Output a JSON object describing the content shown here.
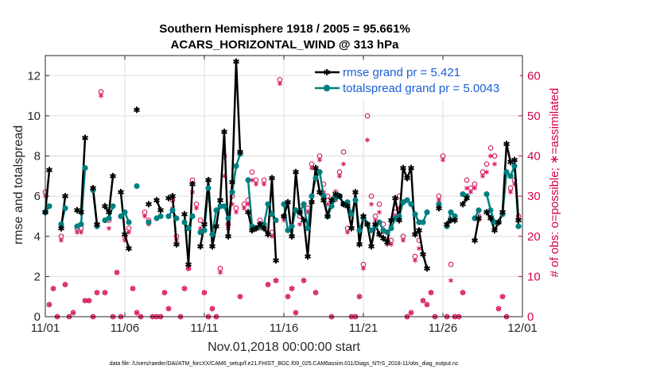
{
  "colors": {
    "rmse": "#000000",
    "spread": "#008080",
    "obs": "#d4004f",
    "legend_text": "#1a5fd6"
  },
  "chart_data": {
    "type": "line",
    "title_line1": "Southern Hemisphere 1918 / 2005 = 95.661%",
    "title_line2": "ACARS_HORIZONTAL_WIND @ 313 hPa",
    "xlabel": "Nov.01,2018 00:00:00 start",
    "ylabel_left": "rmse and totalspread",
    "ylabel_right": "# of obs: o=possible; ∗=assimilated",
    "footnote": "data file: /Users/raeder/DAI/ATM_forcXX/CAM6_setup/f.e21.FHIST_BGC.f09_025.CAM6assim.011/Diags_NTrS_2018-11/obs_diag_output.nc",
    "xlim": [
      0,
      30
    ],
    "ylim_left": [
      0,
      13
    ],
    "ylim_right": [
      0,
      65
    ],
    "x_ticks": [
      0,
      5,
      10,
      15,
      20,
      25,
      30
    ],
    "x_tick_labels": [
      "11/01",
      "11/06",
      "11/11",
      "11/16",
      "11/21",
      "11/26",
      "12/01"
    ],
    "y_left_ticks": [
      0,
      2,
      4,
      6,
      8,
      10,
      12
    ],
    "y_right_ticks": [
      0,
      10,
      20,
      30,
      40,
      50,
      60
    ],
    "legend": {
      "rmse": "rmse grand pr = 5.421",
      "spread": "totalspread grand pr = 5.0043"
    },
    "series": [
      {
        "name": "rmse",
        "x": [
          0.0,
          0.25,
          0.5,
          0.75,
          1.0,
          1.25,
          1.5,
          1.75,
          2.0,
          2.25,
          2.5,
          2.75,
          3.0,
          3.25,
          3.5,
          3.75,
          4.0,
          4.25,
          4.5,
          4.75,
          5.0,
          5.25,
          5.5,
          5.75,
          6.0,
          6.25,
          6.5,
          6.75,
          7.0,
          7.25,
          7.5,
          7.75,
          8.0,
          8.25,
          8.5,
          8.75,
          9.0,
          9.25,
          9.5,
          9.75,
          10.0,
          10.25,
          10.5,
          10.75,
          11.0,
          11.25,
          11.5,
          11.75,
          12.0,
          12.25,
          12.5,
          12.75,
          13.0,
          13.25,
          13.5,
          13.75,
          14.0,
          14.25,
          14.5,
          14.75,
          15.0,
          15.25,
          15.5,
          15.75,
          16.0,
          16.25,
          16.5,
          16.75,
          17.0,
          17.25,
          17.5,
          17.75,
          18.0,
          18.25,
          18.5,
          18.75,
          19.0,
          19.25,
          19.5,
          19.75,
          20.0,
          20.25,
          20.5,
          20.75,
          21.0,
          21.25,
          21.5,
          21.75,
          22.0,
          22.25,
          22.5,
          22.75,
          23.0,
          23.25,
          23.5,
          23.75,
          24.0,
          24.25,
          24.5,
          24.75,
          25.0,
          25.25,
          25.5,
          25.75,
          26.0,
          26.25,
          26.5,
          26.75,
          27.0,
          27.25,
          27.5,
          27.75,
          28.0,
          28.25,
          28.5,
          28.75,
          29.0,
          29.25,
          29.5,
          29.75
        ],
        "values": [
          5.2,
          7.3,
          null,
          null,
          4.4,
          6.0,
          null,
          null,
          5.3,
          5.2,
          8.9,
          null,
          6.4,
          4.6,
          null,
          5.5,
          5.2,
          7.0,
          null,
          6.2,
          4.1,
          3.4,
          null,
          10.3,
          null,
          null,
          5.6,
          null,
          5.8,
          5.3,
          null,
          5.9,
          6.0,
          3.6,
          null,
          5.1,
          2.6,
          6.6,
          null,
          3.5,
          4.6,
          6.8,
          3.5,
          4.5,
          5.8,
          9.2,
          4.0,
          6.7,
          12.7,
          8.2,
          null,
          5.2,
          4.3,
          4.4,
          4.6,
          4.4,
          4.1,
          6.9,
          2.8,
          null,
          5.0,
          5.7,
          4.0,
          7.2,
          5.2,
          4.8,
          3.0,
          5.7,
          7.4,
          6.2,
          5.8,
          5.0,
          5.8,
          6.1,
          6.0,
          5.6,
          5.5,
          4.4,
          6.2,
          3.6,
          5.0,
          4.6,
          3.5,
          4.6,
          4.1,
          3.9,
          3.7,
          4.8,
          5.9,
          4.8,
          7.4,
          6.9,
          7.4,
          4.1,
          4.3,
          3.1,
          2.4,
          null,
          null,
          5.4,
          null,
          4.6,
          4.8,
          4.8,
          null,
          5.6,
          5.9,
          null,
          3.8,
          4.9,
          null,
          5.2,
          4.9,
          4.3,
          4.7,
          5.2,
          8.6,
          7.7,
          7.8,
          4.8
        ]
      },
      {
        "name": "totalspread",
        "x": [
          0.0,
          0.25,
          0.5,
          0.75,
          1.0,
          1.25,
          1.5,
          1.75,
          2.0,
          2.25,
          2.5,
          2.75,
          3.0,
          3.25,
          3.5,
          3.75,
          4.0,
          4.25,
          4.5,
          4.75,
          5.0,
          5.25,
          5.5,
          5.75,
          6.0,
          6.25,
          6.5,
          6.75,
          7.0,
          7.25,
          7.5,
          7.75,
          8.0,
          8.25,
          8.5,
          8.75,
          9.0,
          9.25,
          9.5,
          9.75,
          10.0,
          10.25,
          10.5,
          10.75,
          11.0,
          11.25,
          11.5,
          11.75,
          12.0,
          12.25,
          12.5,
          12.75,
          13.0,
          13.25,
          13.5,
          13.75,
          14.0,
          14.25,
          14.5,
          14.75,
          15.0,
          15.25,
          15.5,
          15.75,
          16.0,
          16.25,
          16.5,
          16.75,
          17.0,
          17.25,
          17.5,
          17.75,
          18.0,
          18.25,
          18.5,
          18.75,
          19.0,
          19.25,
          19.5,
          19.75,
          20.0,
          20.25,
          20.5,
          20.75,
          21.0,
          21.25,
          21.5,
          21.75,
          22.0,
          22.25,
          22.5,
          22.75,
          23.0,
          23.25,
          23.5,
          23.75,
          24.0,
          24.25,
          24.5,
          24.75,
          25.0,
          25.25,
          25.5,
          25.75,
          26.0,
          26.25,
          26.5,
          26.75,
          27.0,
          27.25,
          27.5,
          27.75,
          28.0,
          28.25,
          28.5,
          28.75,
          29.0,
          29.25,
          29.5,
          29.75
        ],
        "values": [
          5.2,
          5.5,
          null,
          null,
          4.6,
          5.4,
          null,
          null,
          4.5,
          4.6,
          7.4,
          null,
          6.3,
          4.5,
          null,
          4.8,
          4.9,
          5.5,
          null,
          5.0,
          5.2,
          4.7,
          null,
          6.5,
          null,
          null,
          4.7,
          null,
          4.9,
          5.0,
          null,
          5.0,
          5.3,
          4.9,
          null,
          4.7,
          4.4,
          5.0,
          null,
          4.2,
          4.3,
          6.4,
          4.1,
          5.3,
          5.5,
          5.5,
          4.9,
          6.2,
          7.5,
          8.1,
          null,
          6.8,
          4.5,
          4.4,
          4.5,
          4.6,
          5.6,
          5.1,
          4.8,
          null,
          5.6,
          4.3,
          4.5,
          5.3,
          5.2,
          5.6,
          4.4,
          6.0,
          6.9,
          7.2,
          6.0,
          5.0,
          5.5,
          5.9,
          6.0,
          5.6,
          5.7,
          5.1,
          5.8,
          4.3,
          4.9,
          4.6,
          4.3,
          4.5,
          4.7,
          4.3,
          4.2,
          4.4,
          4.9,
          5.0,
          5.7,
          5.8,
          5.6,
          5.1,
          4.7,
          4.7,
          5.2,
          null,
          null,
          5.6,
          null,
          4.5,
          5.2,
          5.0,
          null,
          6.1,
          6.0,
          null,
          4.9,
          5.3,
          null,
          6.1,
          5.3,
          4.7,
          4.7,
          5.1,
          7.2,
          7.0,
          7.5,
          4.5
        ]
      },
      {
        "name": "obs_possible",
        "x": [
          0.0,
          0.25,
          0.5,
          0.75,
          1.0,
          1.25,
          1.5,
          1.75,
          2.0,
          2.25,
          2.5,
          2.75,
          3.0,
          3.25,
          3.5,
          3.75,
          4.0,
          4.25,
          4.5,
          4.75,
          5.0,
          5.25,
          5.5,
          5.75,
          6.0,
          6.25,
          6.5,
          6.75,
          7.0,
          7.25,
          7.5,
          7.75,
          8.0,
          8.25,
          8.5,
          8.75,
          9.0,
          9.25,
          9.5,
          9.75,
          10.0,
          10.25,
          10.5,
          10.75,
          11.0,
          11.25,
          11.5,
          11.75,
          12.0,
          12.25,
          12.5,
          12.75,
          13.0,
          13.25,
          13.5,
          13.75,
          14.0,
          14.25,
          14.5,
          14.75,
          15.0,
          15.25,
          15.5,
          15.75,
          16.0,
          16.25,
          16.5,
          16.75,
          17.0,
          17.25,
          17.5,
          17.75,
          18.0,
          18.25,
          18.5,
          18.75,
          19.0,
          19.25,
          19.5,
          19.75,
          20.0,
          20.25,
          20.5,
          20.75,
          21.0,
          21.25,
          21.5,
          21.75,
          22.0,
          22.25,
          22.5,
          22.75,
          23.0,
          23.25,
          23.5,
          23.75,
          24.0,
          24.25,
          24.5,
          24.75,
          25.0,
          25.25,
          25.5,
          25.75,
          26.0,
          26.25,
          26.5,
          26.75,
          27.0,
          27.25,
          27.5,
          27.75,
          28.0,
          28.25,
          28.5,
          28.75,
          29.0,
          29.25,
          29.5,
          29.75
        ],
        "values": [
          31,
          3,
          7,
          0,
          20,
          8,
          0,
          1,
          22,
          22,
          4,
          4,
          0,
          6,
          56,
          6,
          24,
          0,
          11,
          0,
          20,
          22,
          7,
          1,
          0,
          26,
          24,
          0,
          0,
          0,
          6,
          2,
          29,
          20,
          0,
          7,
          12,
          34,
          28,
          24,
          6,
          0,
          2,
          0,
          12,
          40,
          23,
          30,
          27,
          5,
          28,
          29,
          36,
          34,
          24,
          34,
          8,
          21,
          9,
          59,
          25,
          5,
          7,
          1,
          25,
          9,
          27,
          38,
          6,
          40,
          33,
          30,
          0,
          31,
          36,
          41,
          22,
          0,
          0,
          5,
          13,
          50,
          30,
          25,
          28,
          23,
          19,
          19,
          26,
          30,
          20,
          0,
          1,
          15,
          19,
          4,
          3,
          6,
          0,
          30,
          40,
          0,
          13,
          0,
          0,
          6,
          34,
          32,
          33,
          25,
          36,
          38,
          42,
          40,
          2,
          5,
          0,
          32,
          34,
          25
        ]
      },
      {
        "name": "obs_assimilated",
        "x": [
          0.0,
          0.25,
          0.5,
          0.75,
          1.0,
          1.25,
          1.5,
          1.75,
          2.0,
          2.25,
          2.5,
          2.75,
          3.0,
          3.25,
          3.5,
          3.75,
          4.0,
          4.25,
          4.5,
          4.75,
          5.0,
          5.25,
          5.5,
          5.75,
          6.0,
          6.25,
          6.5,
          6.75,
          7.0,
          7.25,
          7.5,
          7.75,
          8.0,
          8.25,
          8.5,
          8.75,
          9.0,
          9.25,
          9.5,
          9.75,
          10.0,
          10.25,
          10.5,
          10.75,
          11.0,
          11.25,
          11.5,
          11.75,
          12.0,
          12.25,
          12.5,
          12.75,
          13.0,
          13.25,
          13.5,
          13.75,
          14.0,
          14.25,
          14.5,
          14.75,
          15.0,
          15.25,
          15.5,
          15.75,
          16.0,
          16.25,
          16.5,
          16.75,
          17.0,
          17.25,
          17.5,
          17.75,
          18.0,
          18.25,
          18.5,
          18.75,
          19.0,
          19.25,
          19.5,
          19.75,
          20.0,
          20.25,
          20.5,
          20.75,
          21.0,
          21.25,
          21.5,
          21.75,
          22.0,
          22.25,
          22.5,
          22.75,
          23.0,
          23.25,
          23.5,
          23.75,
          24.0,
          24.25,
          24.5,
          24.75,
          25.0,
          25.25,
          25.5,
          25.75,
          26.0,
          26.25,
          26.5,
          26.75,
          27.0,
          27.25,
          27.5,
          27.75,
          28.0,
          28.25,
          28.5,
          28.75,
          29.0,
          29.25,
          29.5,
          29.75
        ],
        "values": [
          30,
          3,
          7,
          0,
          19,
          8,
          0,
          1,
          21,
          21,
          4,
          4,
          0,
          6,
          55,
          6,
          22,
          0,
          11,
          0,
          19,
          21,
          7,
          1,
          0,
          25,
          23,
          0,
          0,
          0,
          6,
          2,
          27,
          19,
          0,
          7,
          12,
          31,
          27,
          22,
          6,
          0,
          2,
          0,
          11,
          35,
          22,
          28,
          26,
          5,
          27,
          28,
          34,
          33,
          22,
          33,
          8,
          20,
          9,
          58,
          24,
          5,
          7,
          1,
          23,
          9,
          26,
          37,
          6,
          39,
          31,
          28,
          0,
          29,
          35,
          38,
          21,
          0,
          0,
          5,
          12,
          44,
          28,
          24,
          26,
          21,
          18,
          18,
          25,
          27,
          19,
          0,
          1,
          14,
          17,
          4,
          3,
          6,
          0,
          29,
          39,
          0,
          9,
          0,
          0,
          6,
          32,
          31,
          32,
          24,
          35,
          36,
          40,
          38,
          2,
          5,
          0,
          31,
          33,
          24
        ]
      }
    ]
  }
}
